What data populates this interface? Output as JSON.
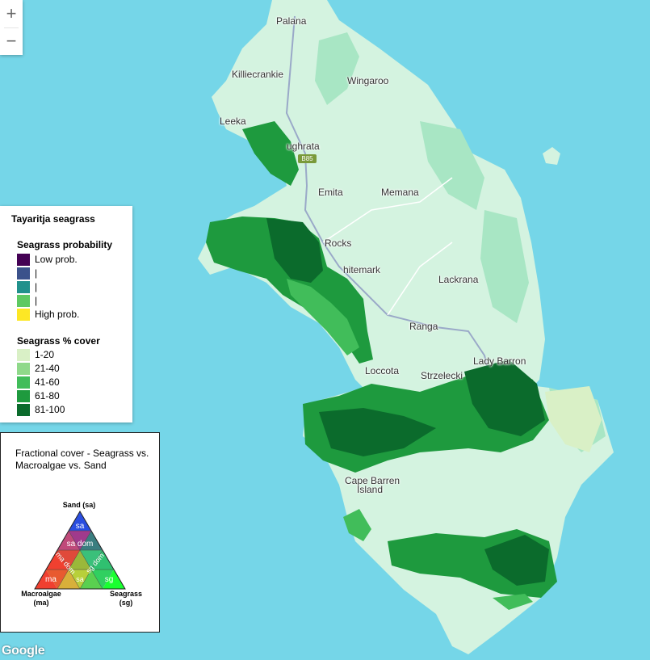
{
  "map": {
    "colors": {
      "sea": "#75d6e8",
      "land": "#d4f3e0",
      "park": "#a8e6c4",
      "road": "#9aa9c8"
    },
    "places": [
      {
        "name": "Palana"
      },
      {
        "name": "Killiecrankie"
      },
      {
        "name": "Wingaroo"
      },
      {
        "name": "Leeka"
      },
      {
        "name": "ughrata"
      },
      {
        "name": "Emita"
      },
      {
        "name": "Memana"
      },
      {
        "name": "Rocks"
      },
      {
        "name": "hitemark"
      },
      {
        "name": "Lackrana"
      },
      {
        "name": "Ranga"
      },
      {
        "name": "Lady Barron"
      },
      {
        "name": "Loccota"
      },
      {
        "name": "Strzelecki"
      },
      {
        "name": "Cape Barren"
      },
      {
        "name": "Island"
      }
    ],
    "route_shield": "B85",
    "attribution": "Google"
  },
  "zoom": {
    "in_label": "+",
    "out_label": "−"
  },
  "legend": {
    "title": "Tayaritja seagrass",
    "probability": {
      "heading": "Seagrass probability",
      "items": [
        {
          "label": "Low prob.",
          "color": "#440154"
        },
        {
          "label": "|",
          "color": "#3b528b"
        },
        {
          "label": "|",
          "color": "#21918c"
        },
        {
          "label": "|",
          "color": "#5ec962"
        },
        {
          "label": "High prob.",
          "color": "#fde725"
        }
      ]
    },
    "cover": {
      "heading": "Seagrass % cover",
      "items": [
        {
          "label": "1-20",
          "color": "#d9f0c6"
        },
        {
          "label": "21-40",
          "color": "#8fd98a"
        },
        {
          "label": "41-60",
          "color": "#41bd5a"
        },
        {
          "label": "61-80",
          "color": "#1e9a3e"
        },
        {
          "label": "81-100",
          "color": "#0b6b2c"
        }
      ]
    }
  },
  "ternary": {
    "title": "Fractional cover - Seagrass vs. Macroalgae vs. Sand",
    "top_label": "Sand (sa)",
    "left_label_1": "Macroalgae",
    "left_label_2": "(ma)",
    "right_label_1": "Seagrass",
    "right_label_2": "(sg)",
    "cells": {
      "sa": "sa",
      "sa_dom": "sa dom",
      "ma_dom": "ma dom",
      "sg_dom": "sg dom",
      "ma": "ma",
      "sg": "sg",
      "center": "sa"
    }
  }
}
